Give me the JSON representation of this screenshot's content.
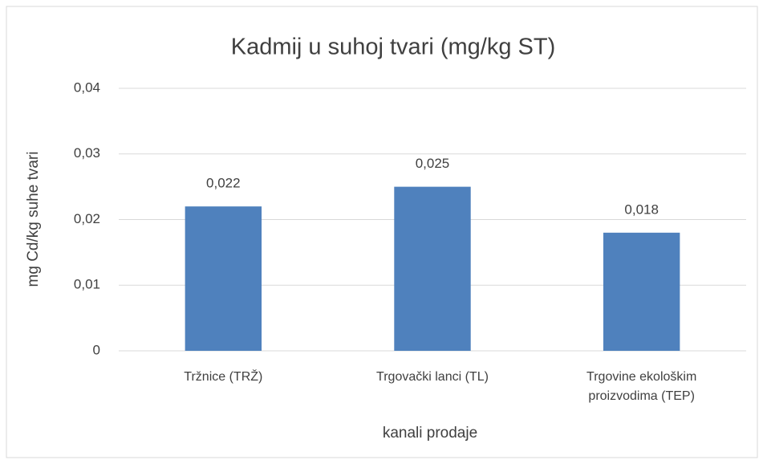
{
  "chart_data": {
    "type": "bar",
    "title": "Kadmij u suhoj tvari (mg/kg ST)",
    "categories": [
      "Tržnice (TRŽ)",
      "Trgovački lanci (TL)",
      "Trgovine ekološkim proizvodima (TEP)"
    ],
    "values": [
      0.022,
      0.025,
      0.018
    ],
    "value_labels": [
      "0,022",
      "0,025",
      "0,018"
    ],
    "color": "#4f81bd",
    "x_label": "kanali prodaje",
    "y_label": "mg Cd/kg suhe tvari",
    "ylim": [
      0,
      0.04
    ],
    "yticks": [
      0,
      {
        "value": 0.01,
        "label": "0,01"
      },
      {
        "value": 0.02,
        "label": "0,02"
      },
      {
        "value": 0.03,
        "label": "0,03"
      },
      {
        "value": 0.04,
        "label": "0,04"
      }
    ],
    "grid": true
  }
}
